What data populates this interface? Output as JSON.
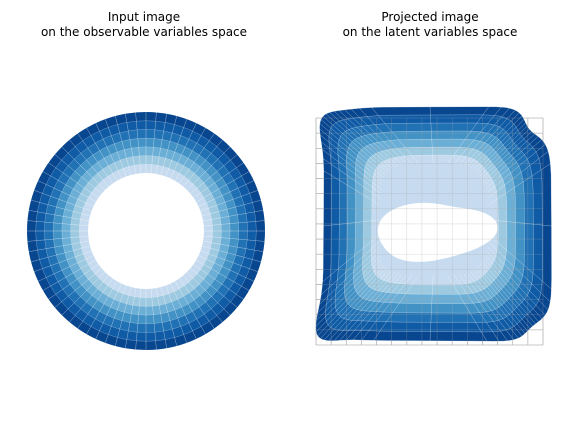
{
  "chart_data": [
    {
      "type": "heatmap",
      "title_lines": [
        "Input image",
        "on the observable variables space"
      ],
      "shape": "annulus",
      "grid": false,
      "band_count": 7,
      "segment_count": 72
    },
    {
      "type": "heatmap",
      "title_lines": [
        "Projected image",
        "on the latent variables space"
      ],
      "shape": "warped-square-annulus",
      "grid": true,
      "grid_cells": [
        15,
        15
      ],
      "band_count": 7,
      "segment_count": 72
    }
  ],
  "colors": {
    "bands": [
      "#08468f",
      "#0f5ba6",
      "#2171b5",
      "#4292c6",
      "#6baed6",
      "#9ecae1",
      "#c6dbef",
      "#deebf7"
    ],
    "grid": "#a7a7a7",
    "segment_lines": "#ffffff"
  }
}
